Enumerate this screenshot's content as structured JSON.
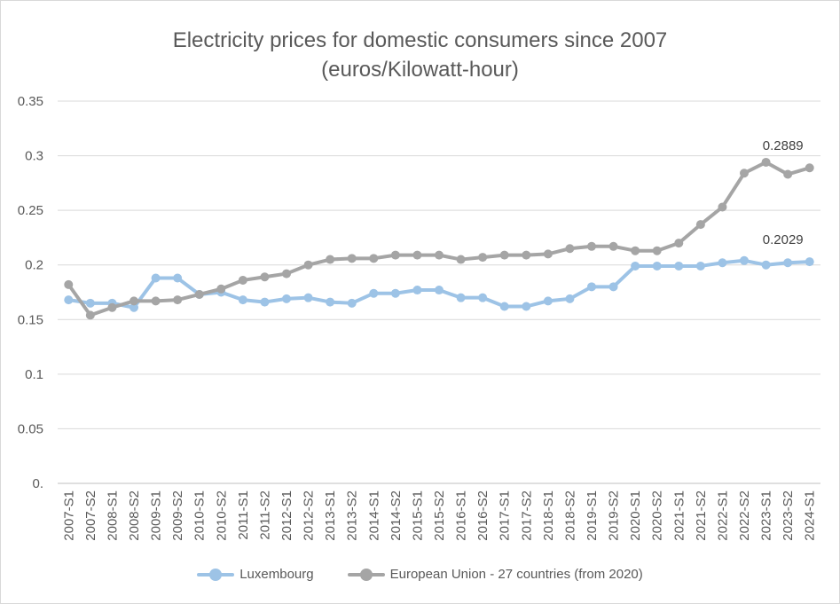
{
  "chart_data": {
    "type": "line",
    "title": "Electricity prices for domestic consumers since 2007",
    "subtitle": "(euros/Kilowatt-hour)",
    "categories": [
      "2007-S1",
      "2007-S2",
      "2008-S1",
      "2008-S2",
      "2009-S1",
      "2009-S2",
      "2010-S1",
      "2010-S2",
      "2011-S1",
      "2011-S2",
      "2012-S1",
      "2012-S2",
      "2013-S1",
      "2013-S2",
      "2014-S1",
      "2014-S2",
      "2015-S1",
      "2015-S2",
      "2016-S1",
      "2016-S2",
      "2017-S1",
      "2017-S2",
      "2018-S1",
      "2018-S2",
      "2019-S1",
      "2019-S2",
      "2020-S1",
      "2020-S2",
      "2021-S1",
      "2021-S2",
      "2022-S1",
      "2022-S2",
      "2023-S1",
      "2023-S2",
      "2024-S1"
    ],
    "y_ticks": [
      "0.",
      "0.05",
      "0.1",
      "0.15",
      "0.2",
      "0.25",
      "0.3",
      "0.35"
    ],
    "ylim": [
      0,
      0.35
    ],
    "grid": true,
    "legend_position": "bottom",
    "series": [
      {
        "name": "Luxembourg",
        "color": "#9DC3E6",
        "values": [
          0.168,
          0.165,
          0.165,
          0.161,
          0.188,
          0.188,
          0.173,
          0.175,
          0.168,
          0.166,
          0.169,
          0.17,
          0.166,
          0.165,
          0.174,
          0.174,
          0.177,
          0.177,
          0.17,
          0.17,
          0.162,
          0.162,
          0.167,
          0.169,
          0.18,
          0.18,
          0.199,
          0.199,
          0.199,
          0.199,
          0.202,
          0.204,
          0.2,
          0.202,
          0.2029
        ],
        "end_label": "0.2029"
      },
      {
        "name": "European Union - 27 countries (from 2020)",
        "color": "#A5A5A5",
        "values": [
          0.182,
          0.154,
          0.161,
          0.167,
          0.167,
          0.168,
          0.173,
          0.178,
          0.186,
          0.189,
          0.192,
          0.2,
          0.205,
          0.206,
          0.206,
          0.209,
          0.209,
          0.209,
          0.205,
          0.207,
          0.209,
          0.209,
          0.21,
          0.215,
          0.217,
          0.217,
          0.213,
          0.213,
          0.22,
          0.237,
          0.253,
          0.284,
          0.294,
          0.283,
          0.2889
        ],
        "end_label": "0.2889"
      }
    ]
  }
}
